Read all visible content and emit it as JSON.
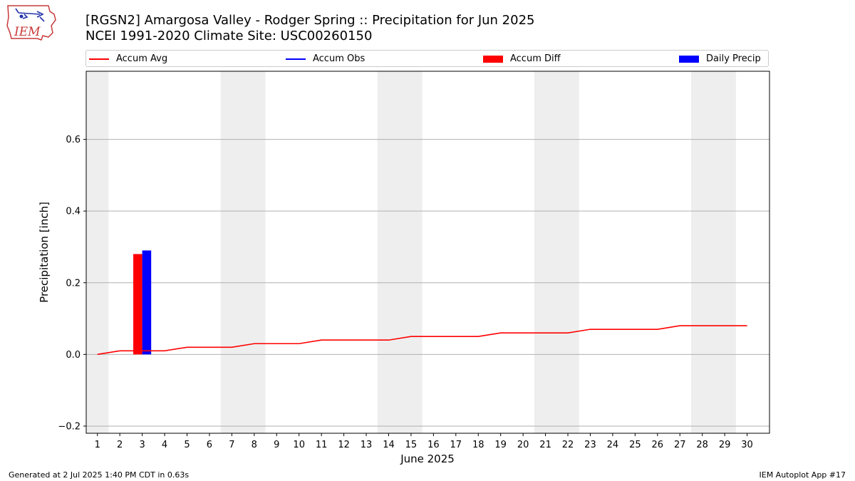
{
  "title": "[RGSN2] Amargosa Valley - Rodger Spring :: Precipitation for Jun 2025",
  "subtitle": "NCEI 1991-2020 Climate Site: USC00260150",
  "logo_text": "IEM",
  "footer_left": "Generated at 2 Jul 2025 1:40 PM CDT in 0.63s",
  "footer_right": "IEM Autoplot App #17",
  "colors": {
    "avg": "#ff0000",
    "obs": "#0000ff",
    "diff": "#ff0000",
    "daily": "#0000ff",
    "weekend": "#eeeeee",
    "grid": "#b0b0b0"
  },
  "legend": [
    {
      "label": "Accum Avg",
      "kind": "line",
      "color": "#ff0000"
    },
    {
      "label": "Accum Obs",
      "kind": "line",
      "color": "#0000ff"
    },
    {
      "label": "Accum Diff",
      "kind": "box",
      "color": "#ff0000"
    },
    {
      "label": "Daily Precip",
      "kind": "box",
      "color": "#0000ff"
    }
  ],
  "chart_data": {
    "type": "bar",
    "title": "[RGSN2] Amargosa Valley - Rodger Spring :: Precipitation for Jun 2025",
    "xlabel": "June 2025",
    "ylabel": "Precipitation [inch]",
    "xlim": [
      0.5,
      31.0
    ],
    "ylim": [
      -0.22,
      0.79
    ],
    "yticks": [
      -0.2,
      0.0,
      0.2,
      0.4,
      0.6
    ],
    "ytick_labels": [
      "−0.2",
      "0.0",
      "0.2",
      "0.4",
      "0.6"
    ],
    "days": [
      1,
      2,
      3,
      4,
      5,
      6,
      7,
      8,
      9,
      10,
      11,
      12,
      13,
      14,
      15,
      16,
      17,
      18,
      19,
      20,
      21,
      22,
      23,
      24,
      25,
      26,
      27,
      28,
      29,
      30
    ],
    "weekend_shading": [
      [
        0.5,
        1.5
      ],
      [
        6.5,
        8.5
      ],
      [
        13.5,
        15.5
      ],
      [
        20.5,
        22.5
      ],
      [
        27.5,
        29.5
      ]
    ],
    "series": [
      {
        "name": "Accum Avg",
        "type": "line",
        "values": [
          0.0,
          0.01,
          0.01,
          0.01,
          0.02,
          0.02,
          0.02,
          0.03,
          0.03,
          0.03,
          0.04,
          0.04,
          0.04,
          0.04,
          0.05,
          0.05,
          0.05,
          0.05,
          0.06,
          0.06,
          0.06,
          0.06,
          0.07,
          0.07,
          0.07,
          0.07,
          0.08,
          0.08,
          0.08,
          0.08
        ]
      },
      {
        "name": "Accum Diff",
        "type": "bar",
        "day": 3,
        "value": 0.28
      },
      {
        "name": "Daily Precip",
        "type": "bar",
        "day": 3,
        "value": 0.29
      }
    ]
  }
}
